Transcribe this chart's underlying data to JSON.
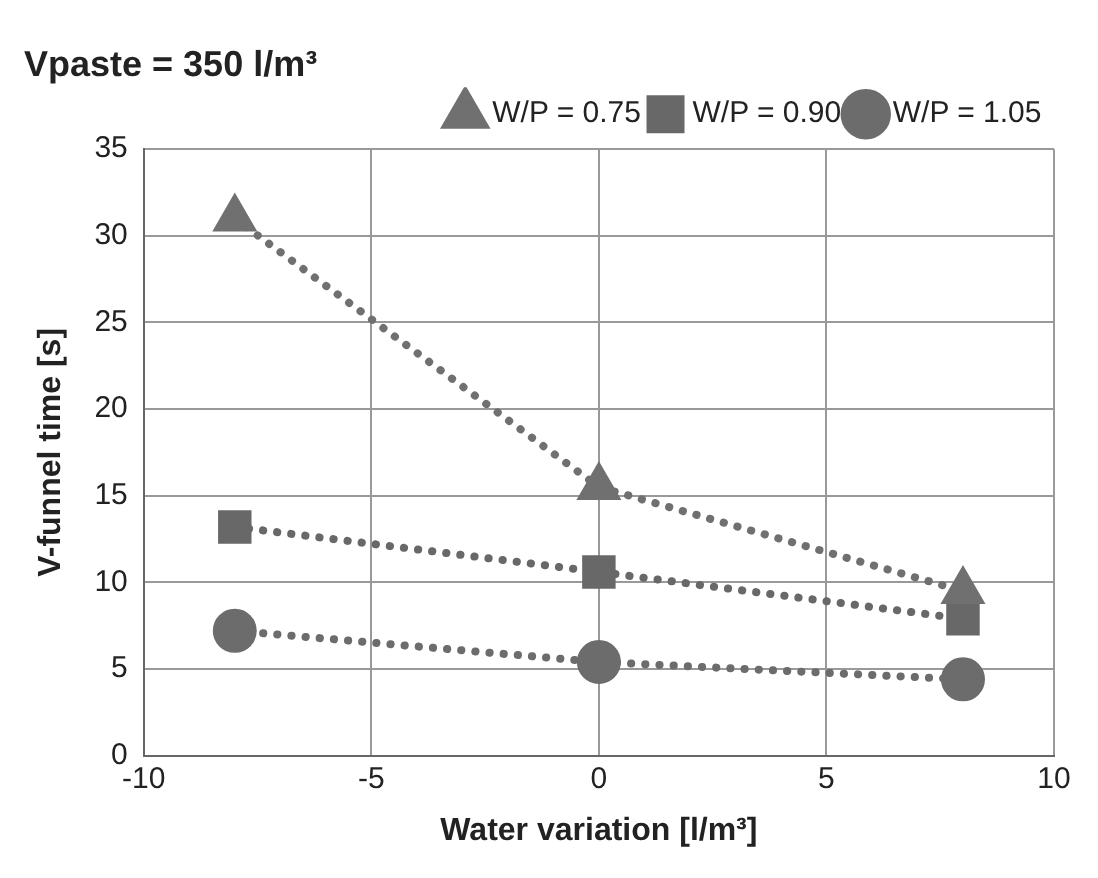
{
  "chart_data": {
    "type": "line",
    "title": "Vpaste = 350 l/m³",
    "xlabel": "Water variation [l/m³]",
    "ylabel": "V-funnel time [s]",
    "x": [
      -8,
      0,
      8
    ],
    "series": [
      {
        "name": "W/P = 0.75",
        "color": "#707070",
        "values": [
          31,
          15.5,
          9.5
        ],
        "marker": "triangle"
      },
      {
        "name": "W/P = 0.90",
        "color": "#686868",
        "values": [
          13.2,
          10.6,
          7.9
        ],
        "marker": "square"
      },
      {
        "name": "W/P = 1.05",
        "color": "#6c6c6c",
        "values": [
          7.2,
          5.4,
          4.4
        ],
        "marker": "circle"
      }
    ],
    "xlim": [
      -10,
      10
    ],
    "xticks": [
      -10,
      -5,
      0,
      5,
      10
    ],
    "ylim": [
      0,
      35
    ],
    "yticks": [
      0,
      5,
      10,
      15,
      20,
      25,
      30,
      35
    ],
    "grid": true,
    "legend": "top right",
    "line_style": "dotted"
  }
}
